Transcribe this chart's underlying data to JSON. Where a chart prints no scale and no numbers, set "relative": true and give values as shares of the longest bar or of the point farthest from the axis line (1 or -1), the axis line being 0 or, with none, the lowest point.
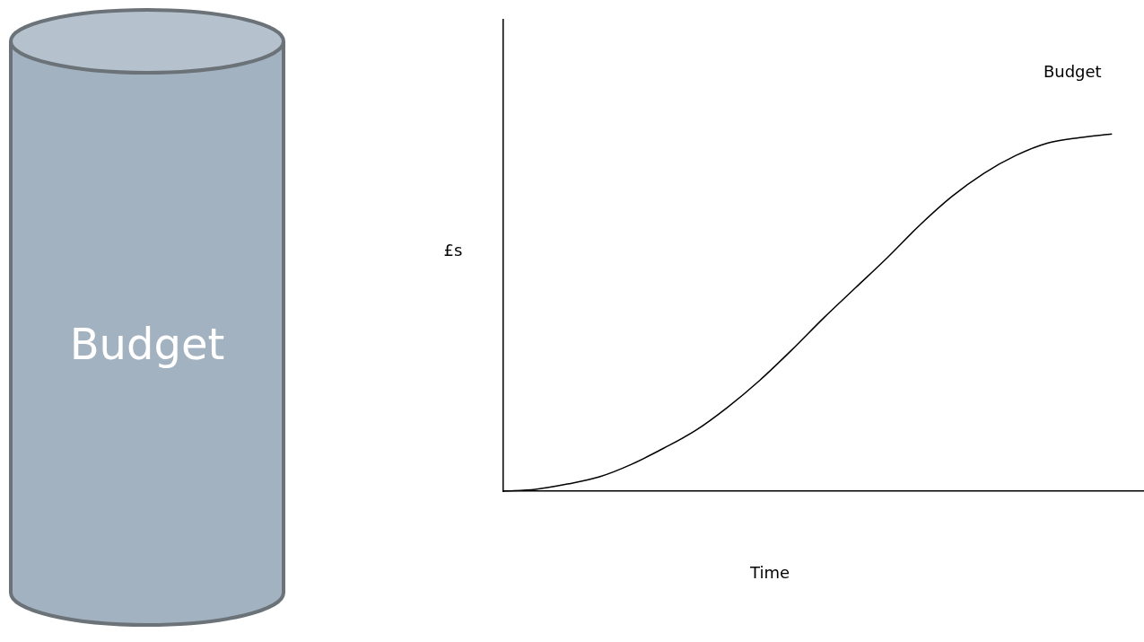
{
  "chart_data": {
    "type": "line",
    "relative": true,
    "xlabel": "Time",
    "ylabel": "£s",
    "annotations": [
      "Budget"
    ],
    "categories": [
      null,
      null,
      null,
      null,
      null,
      null,
      null,
      null,
      null,
      null,
      null,
      null,
      null,
      null,
      null,
      null,
      null,
      null,
      null,
      null,
      null
    ],
    "series": [
      {
        "name": "Budget",
        "color": "#000000",
        "values": [
          0,
          0.005,
          0.02,
          0.04,
          0.075,
          0.12,
          0.17,
          0.235,
          0.31,
          0.395,
          0.485,
          0.57,
          0.655,
          0.745,
          0.825,
          0.89,
          0.94,
          0.975,
          0.99,
          1,
          null
        ]
      }
    ],
    "grid": false,
    "legend": false,
    "marker": "none",
    "line_style": "solid"
  }
}
